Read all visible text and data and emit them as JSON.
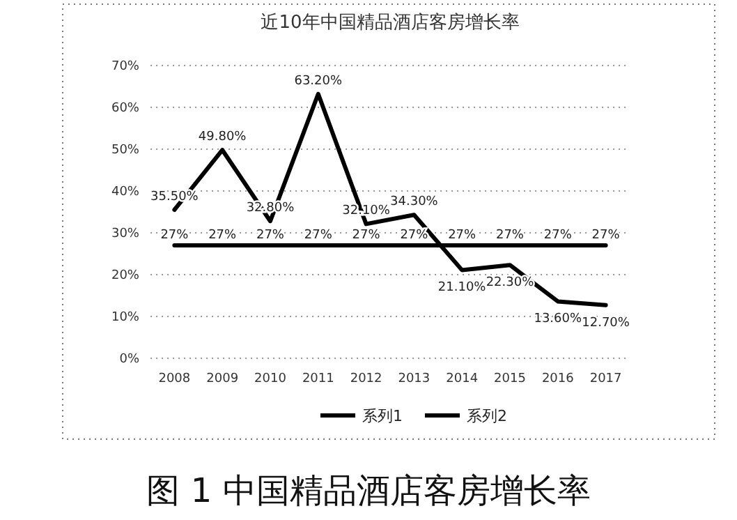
{
  "chart_data": {
    "type": "line",
    "title": "近10年中国精品酒店客房增长率",
    "categories": [
      "2008",
      "2009",
      "2010",
      "2011",
      "2012",
      "2013",
      "2014",
      "2015",
      "2016",
      "2017"
    ],
    "series": [
      {
        "name": "系列1",
        "color": "#000000",
        "values": [
          35.5,
          49.8,
          32.8,
          63.2,
          32.1,
          34.3,
          21.1,
          22.3,
          13.6,
          12.7
        ],
        "value_labels": [
          "35.50%",
          "49.80%",
          "32.80%",
          "63.20%",
          "32.10%",
          "34.30%",
          "21.10%",
          "22.30%",
          "13.60%",
          "12.70%"
        ]
      },
      {
        "name": "系列2",
        "color": "#000000",
        "values": [
          27,
          27,
          27,
          27,
          27,
          27,
          27,
          27,
          27,
          27
        ],
        "value_labels": [
          "27%",
          "27%",
          "27%",
          "27%",
          "27%",
          "27%",
          "27%",
          "27%",
          "27%",
          "27%"
        ]
      }
    ],
    "ylim": [
      0,
      70
    ],
    "yticks": [
      {
        "value": 0,
        "label": "0%"
      },
      {
        "value": 10,
        "label": "10%"
      },
      {
        "value": 20,
        "label": "20%"
      },
      {
        "value": 30,
        "label": "30%"
      },
      {
        "value": 40,
        "label": "40%"
      },
      {
        "value": 50,
        "label": "50%"
      },
      {
        "value": 60,
        "label": "60%"
      },
      {
        "value": 70,
        "label": "70%"
      }
    ],
    "grid": "y",
    "legend": "bottom",
    "annotations": [
      "图 1 中国精品酒店客房增长率"
    ]
  }
}
